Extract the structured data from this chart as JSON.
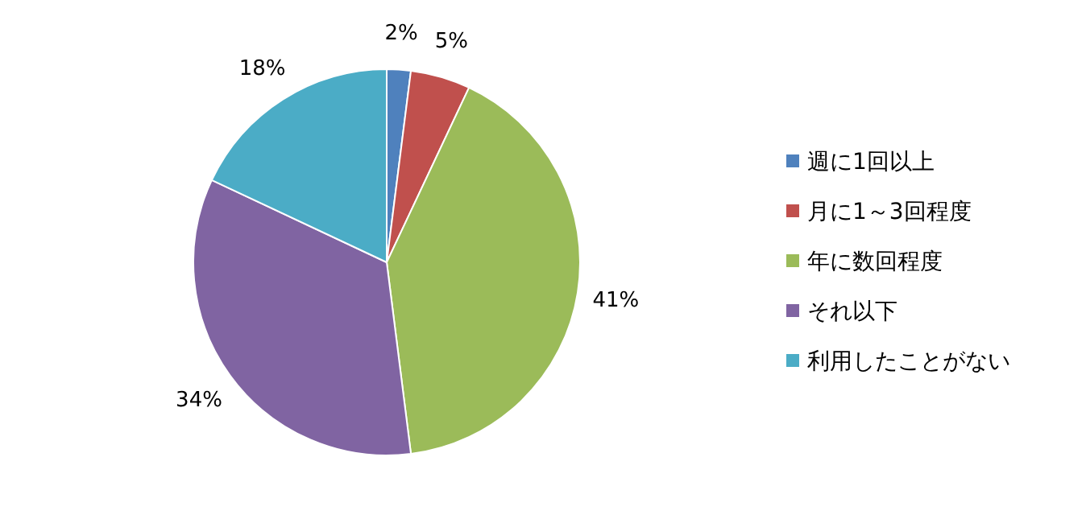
{
  "chart_data": {
    "type": "pie",
    "categories": [
      "週に1回以上",
      "月に1～3回程度",
      "年に数回程度",
      "それ以下",
      "利用したことがない"
    ],
    "values": [
      2,
      5,
      41,
      34,
      18
    ],
    "colors": [
      "#4f81bd",
      "#c0504d",
      "#9bbb59",
      "#8064a2",
      "#4bacc6"
    ],
    "value_labels": [
      "2%",
      "5%",
      "41%",
      "34%",
      "18%"
    ],
    "legend": "right"
  }
}
